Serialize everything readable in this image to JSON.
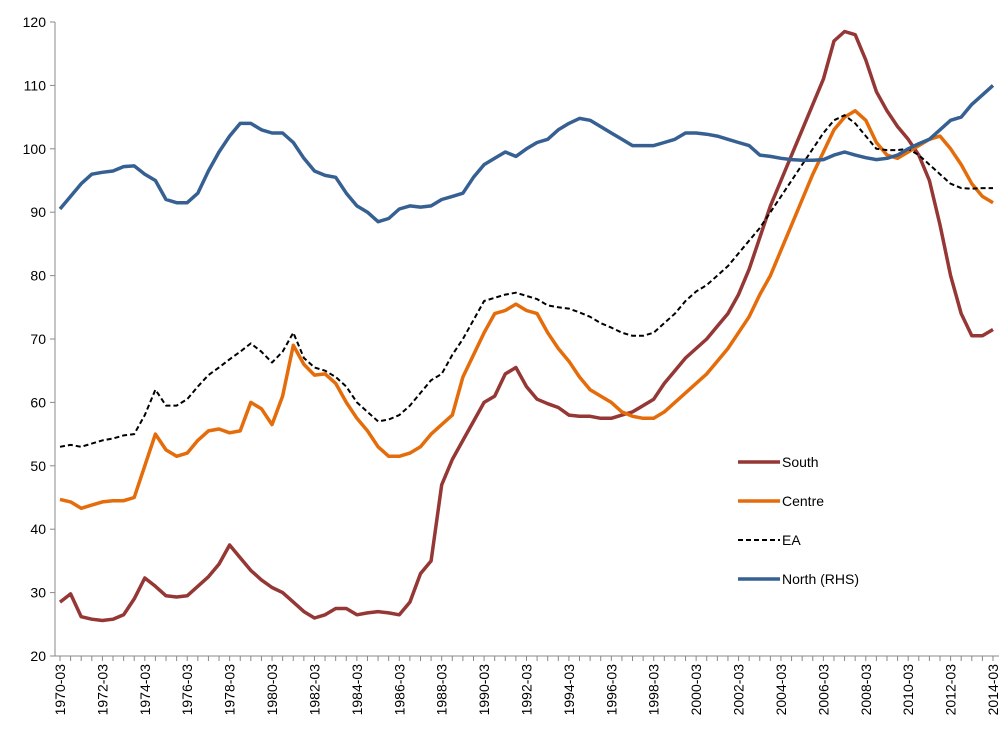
{
  "chart_data": {
    "type": "line",
    "categories": [
      "1970-03",
      null,
      null,
      null,
      "1972-03",
      null,
      null,
      null,
      "1974-03",
      null,
      null,
      null,
      "1976-03",
      null,
      null,
      null,
      "1978-03",
      null,
      null,
      null,
      "1980-03",
      null,
      null,
      null,
      "1982-03",
      null,
      null,
      null,
      "1984-03",
      null,
      null,
      null,
      "1986-03",
      null,
      null,
      null,
      "1988-03",
      null,
      null,
      null,
      "1990-03",
      null,
      null,
      null,
      "1992-03",
      null,
      null,
      null,
      "1994-03",
      null,
      null,
      null,
      "1996-03",
      null,
      null,
      null,
      "1998-03",
      null,
      null,
      null,
      "2000-03",
      null,
      null,
      null,
      "2002-03",
      null,
      null,
      null,
      "2004-03",
      null,
      null,
      null,
      "2006-03",
      null,
      null,
      null,
      "2008-03",
      null,
      null,
      null,
      "2010-03",
      null,
      null,
      null,
      "2012-03",
      null,
      null,
      null,
      "2014-03"
    ],
    "series": [
      {
        "name": "South",
        "color": "#953735",
        "style": "solid",
        "values": [
          28.5,
          29.8,
          26.2,
          25.8,
          25.6,
          25.8,
          26.5,
          29,
          32.3,
          31,
          29.5,
          29.3,
          29.5,
          31,
          32.5,
          34.5,
          37.5,
          35.5,
          33.5,
          32,
          30.8,
          30,
          28.5,
          27,
          26,
          26.5,
          27.5,
          27.5,
          26.5,
          26.8,
          27,
          26.8,
          26.5,
          28.5,
          33,
          35,
          47,
          51,
          54,
          57,
          60,
          61,
          64.5,
          65.5,
          62.5,
          60.5,
          59.8,
          59.2,
          58,
          57.8,
          57.8,
          57.5,
          57.5,
          58,
          58.5,
          59.5,
          60.5,
          63,
          65,
          67,
          68.5,
          70,
          72,
          74,
          77,
          81,
          86,
          91,
          95,
          99,
          103,
          107,
          111,
          117,
          118.5,
          118,
          114,
          109,
          106,
          103.5,
          101.5,
          99,
          95,
          88,
          80,
          74,
          70.5,
          70.5,
          71.5
        ]
      },
      {
        "name": "Centre",
        "color": "#e46c0a",
        "style": "solid",
        "values": [
          44.7,
          44.3,
          43.3,
          43.8,
          44.3,
          44.5,
          44.5,
          45,
          50,
          55,
          52.5,
          51.5,
          52,
          54,
          55.5,
          55.8,
          55.2,
          55.5,
          60,
          59,
          56.5,
          61,
          69,
          66,
          64.3,
          64.5,
          63,
          60,
          57.5,
          55.5,
          53,
          51.5,
          51.5,
          52,
          53,
          55,
          56.5,
          58,
          64,
          67.5,
          71,
          74,
          74.5,
          75.5,
          74.5,
          74,
          71,
          68.5,
          66.5,
          64,
          62,
          61,
          60,
          58.5,
          57.8,
          57.5,
          57.5,
          58.5,
          60,
          61.5,
          63,
          64.5,
          66.5,
          68.5,
          71,
          73.5,
          77,
          80,
          84,
          88,
          92,
          96,
          99.5,
          103,
          105,
          106,
          104.5,
          101,
          99,
          98.5,
          99.5,
          100.5,
          101.5,
          102,
          100,
          97.5,
          94.5,
          92.5,
          91.5
        ]
      },
      {
        "name": "EA",
        "color": "#000000",
        "style": "dashed",
        "values": [
          53,
          53.3,
          53,
          53.5,
          54,
          54.3,
          54.8,
          55,
          58,
          62,
          59.5,
          59.5,
          60.5,
          62.5,
          64.3,
          65.5,
          66.8,
          68,
          69.3,
          68,
          66.3,
          68,
          71,
          67,
          65.5,
          65,
          64,
          62.5,
          60,
          58.5,
          57,
          57.3,
          58,
          59.5,
          61.5,
          63.5,
          64.5,
          67.5,
          70,
          73,
          76,
          76.5,
          77,
          77.3,
          76.8,
          76.3,
          75.3,
          75,
          74.8,
          74.2,
          73.5,
          72.5,
          71.8,
          71,
          70.5,
          70.5,
          71,
          72.5,
          74,
          76,
          77.5,
          78.5,
          80,
          81.5,
          83.5,
          85.5,
          87.5,
          90,
          92.5,
          95,
          97.5,
          100,
          102.5,
          104.5,
          105.3,
          104,
          102,
          100,
          99.8,
          99.8,
          100,
          99,
          97.5,
          96,
          94.5,
          93.8,
          93.7,
          93.8,
          93.8
        ]
      },
      {
        "name": "North (RHS)",
        "color": "#376092",
        "style": "solid",
        "values": [
          90.5,
          92.5,
          94.5,
          96,
          96.3,
          96.5,
          97.2,
          97.3,
          96,
          95,
          92,
          91.5,
          91.5,
          93,
          96.5,
          99.5,
          102,
          104,
          104,
          103,
          102.5,
          102.5,
          101,
          98.5,
          96.5,
          95.8,
          95.5,
          93,
          91,
          90,
          88.5,
          89,
          90.5,
          91,
          90.8,
          91,
          92,
          92.5,
          93,
          95.5,
          97.5,
          98.5,
          99.5,
          98.8,
          100,
          101,
          101.5,
          103,
          104,
          104.8,
          104.5,
          103.5,
          102.5,
          101.5,
          100.5,
          100.5,
          100.5,
          101,
          101.5,
          102.5,
          102.5,
          102.3,
          102,
          101.5,
          101,
          100.5,
          99,
          98.8,
          98.5,
          98.3,
          98.2,
          98.2,
          98.3,
          99,
          99.5,
          99,
          98.6,
          98.3,
          98.5,
          99,
          100,
          100.8,
          101.5,
          103,
          104.5,
          105,
          107,
          108.5,
          110
        ]
      }
    ],
    "ylim": [
      20,
      120
    ],
    "yticks": [
      20,
      30,
      40,
      50,
      60,
      70,
      80,
      90,
      100,
      110,
      120
    ],
    "grid": false,
    "legend": "lower right"
  }
}
